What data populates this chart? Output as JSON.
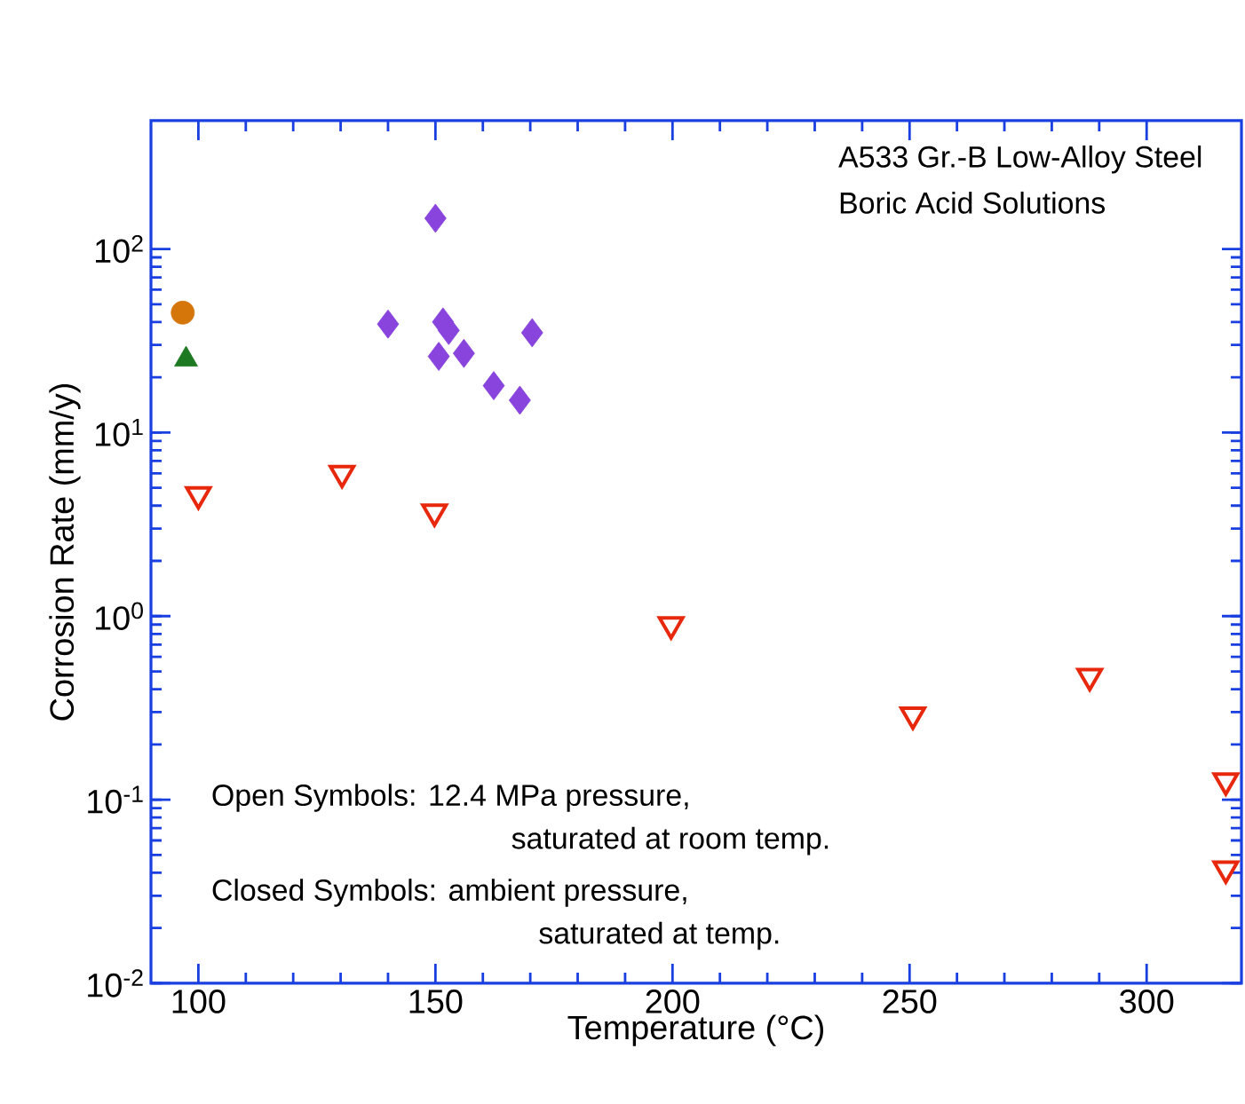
{
  "chart_data": {
    "type": "scatter",
    "xlabel": "Temperature (°C)",
    "ylabel": "Corrosion Rate (mm/y)",
    "log": "y",
    "xlim": [
      90,
      320
    ],
    "ylim": [
      0.01,
      500
    ],
    "xticks": [
      100,
      150,
      200,
      250,
      300
    ],
    "yticks": [
      {
        "value": 0.01,
        "label": "10$^{-2}$"
      },
      {
        "value": 0.1,
        "label": "10$^{-1}$"
      },
      {
        "value": 1,
        "label": "10$^{0}$"
      },
      {
        "value": 10,
        "label": "10$^{1}$"
      },
      {
        "value": 100,
        "label": "10$^{2}$"
      }
    ],
    "annotations": [
      "A533 Gr.-B Low-Alloy Steel",
      "Boric Acid Solutions",
      "Open Symbols: 12.4 MPa pressure,",
      "saturated at room temp.",
      "Closed Symbols: ambient pressure,",
      "saturated at temp."
    ],
    "series": [
      {
        "color": "#d4760a",
        "marker": "circle",
        "x": [
          96.7
        ],
        "values": [
          45
        ]
      },
      {
        "color": "#1e7a22",
        "marker": "triangle",
        "x": [
          97.4
        ],
        "values": [
          25
        ]
      },
      {
        "color": "#8844dd",
        "marker": "diamond",
        "x": [
          150,
          140,
          151.6,
          152.8,
          150.7,
          156,
          162.3,
          167.8,
          170.4
        ],
        "values": [
          147,
          39,
          40,
          36,
          26,
          27,
          18,
          15,
          35
        ]
      },
      {
        "color": "#e8280c",
        "marker": "triangle-down-open",
        "x": [
          100,
          130.3,
          149.8,
          199.7,
          250.7,
          288,
          316.7,
          316.7
        ],
        "values": [
          4.6,
          6.0,
          3.7,
          0.9,
          0.29,
          0.47,
          0.127,
          0.042
        ]
      }
    ]
  }
}
